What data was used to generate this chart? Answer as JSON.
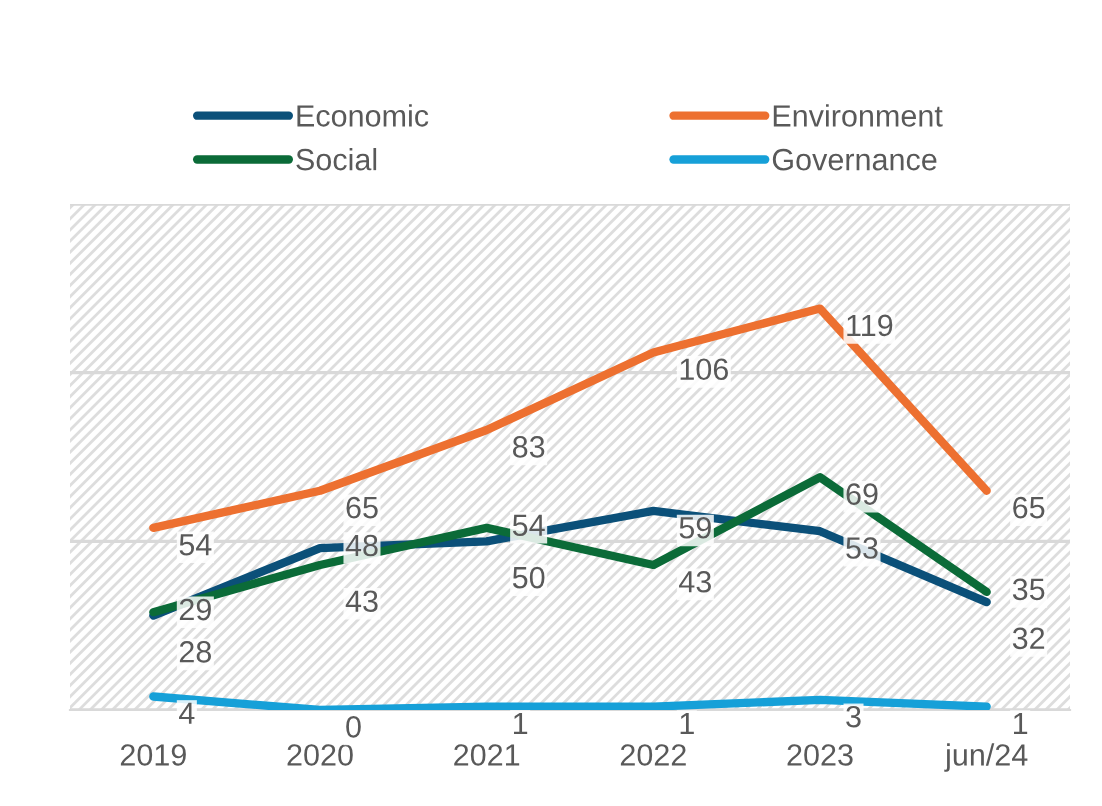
{
  "chart_data": {
    "type": "line",
    "categories": [
      "2019",
      "2020",
      "2021",
      "2022",
      "2023",
      "jun/24"
    ],
    "series": [
      {
        "name": "Economic",
        "color": "#0b5079",
        "values": [
          28,
          48,
          50,
          59,
          53,
          32
        ]
      },
      {
        "name": "Environment",
        "color": "#ed7030",
        "values": [
          54,
          65,
          83,
          106,
          119,
          65
        ]
      },
      {
        "name": "Social",
        "color": "#0b6b38",
        "values": [
          29,
          43,
          54,
          43,
          69,
          35
        ]
      },
      {
        "name": "Governance",
        "color": "#16a0d8",
        "values": [
          4,
          0,
          1,
          1,
          3,
          1
        ]
      }
    ],
    "ylim": [
      0,
      150
    ],
    "yticks": [
      {
        "value": 0,
        "label": null
      },
      {
        "value": 50,
        "label": null
      },
      {
        "value": 100,
        "label": null
      },
      {
        "value": 150,
        "label": null
      }
    ],
    "tick_labels": "x",
    "grid": "y",
    "legend": "top",
    "marker": "none",
    "line_style": "solid",
    "data_labels": true
  }
}
